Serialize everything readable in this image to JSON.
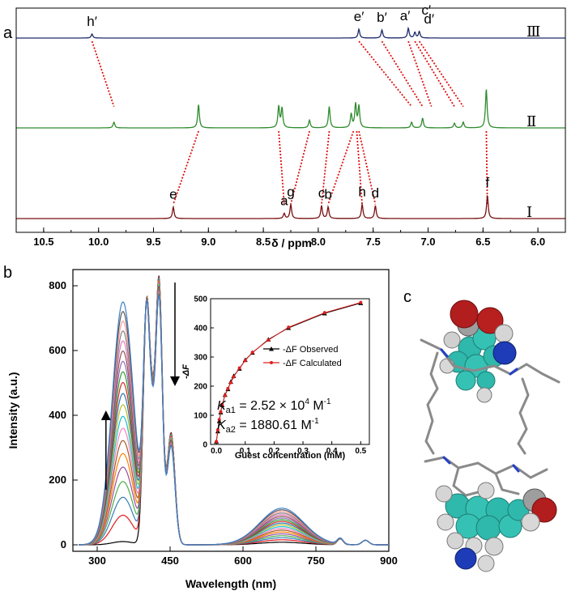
{
  "panel_labels": {
    "a": "a",
    "b": "b",
    "c": "c"
  },
  "chart_data": [
    {
      "type": "line",
      "panel": "a",
      "xlabel": "δ / ppm",
      "xlim": [
        10.75,
        5.75
      ],
      "x_reversed": true,
      "x_ticks": [
        "10.5",
        "10.0",
        "9.5",
        "9.0",
        "8.5",
        "8.0",
        "7.5",
        "7.0",
        "6.5",
        "6.0"
      ],
      "series": [
        {
          "name": "Ⅲ",
          "color": "#1f2a6b",
          "peaks": [
            {
              "label": "h′",
              "x": 10.06,
              "height": 0.25
            },
            {
              "label": "e′",
              "x": 7.63,
              "height": 0.55
            },
            {
              "label": "b′",
              "x": 7.42,
              "height": 0.5
            },
            {
              "label": "a′",
              "x": 7.18,
              "height": 0.6
            },
            {
              "label": "c′",
              "x": 7.12,
              "height": 0.35
            },
            {
              "label": "d′",
              "x": 7.08,
              "height": 0.4
            }
          ]
        },
        {
          "name": "Ⅱ",
          "color": "#2e8b2e",
          "peaks": [
            {
              "x": 9.86,
              "height": 0.15
            },
            {
              "x": 9.09,
              "height": 0.6
            },
            {
              "x": 8.36,
              "height": 0.55
            },
            {
              "x": 8.33,
              "height": 0.5
            },
            {
              "x": 8.08,
              "height": 0.2
            },
            {
              "x": 7.9,
              "height": 0.55
            },
            {
              "x": 7.7,
              "height": 0.35
            },
            {
              "x": 7.66,
              "height": 0.6
            },
            {
              "x": 7.63,
              "height": 0.55
            },
            {
              "x": 7.15,
              "height": 0.15
            },
            {
              "x": 7.05,
              "height": 0.25
            },
            {
              "x": 6.76,
              "height": 0.12
            },
            {
              "x": 6.68,
              "height": 0.15
            },
            {
              "x": 6.47,
              "height": 1.0
            }
          ]
        },
        {
          "name": "Ⅰ",
          "color": "#7a1010",
          "peaks": [
            {
              "label": "e",
              "x": 9.32,
              "height": 0.45
            },
            {
              "label": "a",
              "x": 8.31,
              "height": 0.2
            },
            {
              "label": "g",
              "x": 8.25,
              "height": 0.55
            },
            {
              "label": "c",
              "x": 7.97,
              "height": 0.5
            },
            {
              "label": "b",
              "x": 7.91,
              "height": 0.45
            },
            {
              "label": "h",
              "x": 7.6,
              "height": 0.55
            },
            {
              "label": "d",
              "x": 7.48,
              "height": 0.5
            },
            {
              "label": "f",
              "x": 6.46,
              "height": 0.9
            }
          ]
        }
      ],
      "connections": [
        [
          "Ⅲ",
          10.06,
          "Ⅱ",
          9.86
        ],
        [
          "Ⅲ",
          7.63,
          "Ⅱ",
          7.15
        ],
        [
          "Ⅲ",
          7.42,
          "Ⅱ",
          7.05
        ],
        [
          "Ⅲ",
          7.18,
          "Ⅱ",
          6.97
        ],
        [
          "Ⅲ",
          7.12,
          "Ⅱ",
          6.76
        ],
        [
          "Ⅲ",
          7.08,
          "Ⅱ",
          6.68
        ],
        [
          "Ⅱ",
          9.09,
          "Ⅰ",
          9.32
        ],
        [
          "Ⅱ",
          8.36,
          "Ⅰ",
          8.31
        ],
        [
          "Ⅱ",
          8.08,
          "Ⅰ",
          8.25
        ],
        [
          "Ⅱ",
          7.9,
          "Ⅰ",
          7.97
        ],
        [
          "Ⅱ",
          7.68,
          "Ⅰ",
          7.91
        ],
        [
          "Ⅱ",
          7.65,
          "Ⅰ",
          7.6
        ],
        [
          "Ⅱ",
          7.63,
          "Ⅰ",
          7.48
        ],
        [
          "Ⅱ",
          6.47,
          "Ⅰ",
          6.46
        ]
      ]
    },
    {
      "type": "line",
      "panel": "b",
      "xlabel": "Wavelength (nm)",
      "ylabel": "Intensity (a.u.)",
      "xlim": [
        250,
        900
      ],
      "ylim": [
        -20,
        850
      ],
      "x_ticks": [
        300,
        450,
        600,
        750,
        900
      ],
      "y_ticks": [
        0,
        200,
        400,
        600,
        800
      ],
      "n_curves": 20,
      "arrows": [
        {
          "direction": "up",
          "x": 318,
          "y_from": 170,
          "y_to": 400
        },
        {
          "direction": "down",
          "x": 460,
          "y_from": 810,
          "y_to": 505
        }
      ],
      "inset": {
        "type": "line",
        "xlabel": "Guest concentration (mM)",
        "ylabel": "-ΔF",
        "xlim": [
          -0.02,
          0.53
        ],
        "ylim": [
          0,
          500
        ],
        "x_ticks": [
          0.0,
          0.1,
          0.2,
          0.3,
          0.4,
          0.5
        ],
        "x_tick_labels": [
          "0.0",
          "0.1",
          "0.2",
          "0.3",
          "0.4",
          "0.5"
        ],
        "y_ticks": [
          0,
          100,
          200,
          300,
          400,
          500
        ],
        "series": [
          {
            "name": "-ΔF Observed",
            "color": "#000000",
            "marker": "triangle",
            "x": [
              0.0,
              0.005,
              0.01,
              0.015,
              0.02,
              0.03,
              0.04,
              0.05,
              0.06,
              0.08,
              0.1,
              0.125,
              0.18,
              0.25,
              0.375,
              0.5
            ],
            "y": [
              10,
              45,
              80,
              110,
              135,
              170,
              190,
              215,
              235,
              260,
              290,
              315,
              360,
              400,
              450,
              485
            ]
          },
          {
            "name": "-ΔF Calculated",
            "color": "#e02020",
            "marker": "circle",
            "x": [
              0.0,
              0.005,
              0.01,
              0.015,
              0.02,
              0.03,
              0.04,
              0.05,
              0.06,
              0.08,
              0.1,
              0.125,
              0.18,
              0.25,
              0.375,
              0.5
            ],
            "y": [
              10,
              50,
              85,
              112,
              137,
              168,
              192,
              212,
              232,
              262,
              288,
              316,
              358,
              402,
              452,
              487
            ]
          }
        ],
        "annotations": [
          {
            "prefix": "K",
            "sub": "a1",
            "text": " = 2.52 × 10",
            "sup": "4",
            "unit": " M",
            "unit_sup": "-1"
          },
          {
            "prefix": "K",
            "sub": "a2",
            "text": " = 1880.61 M",
            "sup": "-1"
          }
        ]
      }
    }
  ]
}
